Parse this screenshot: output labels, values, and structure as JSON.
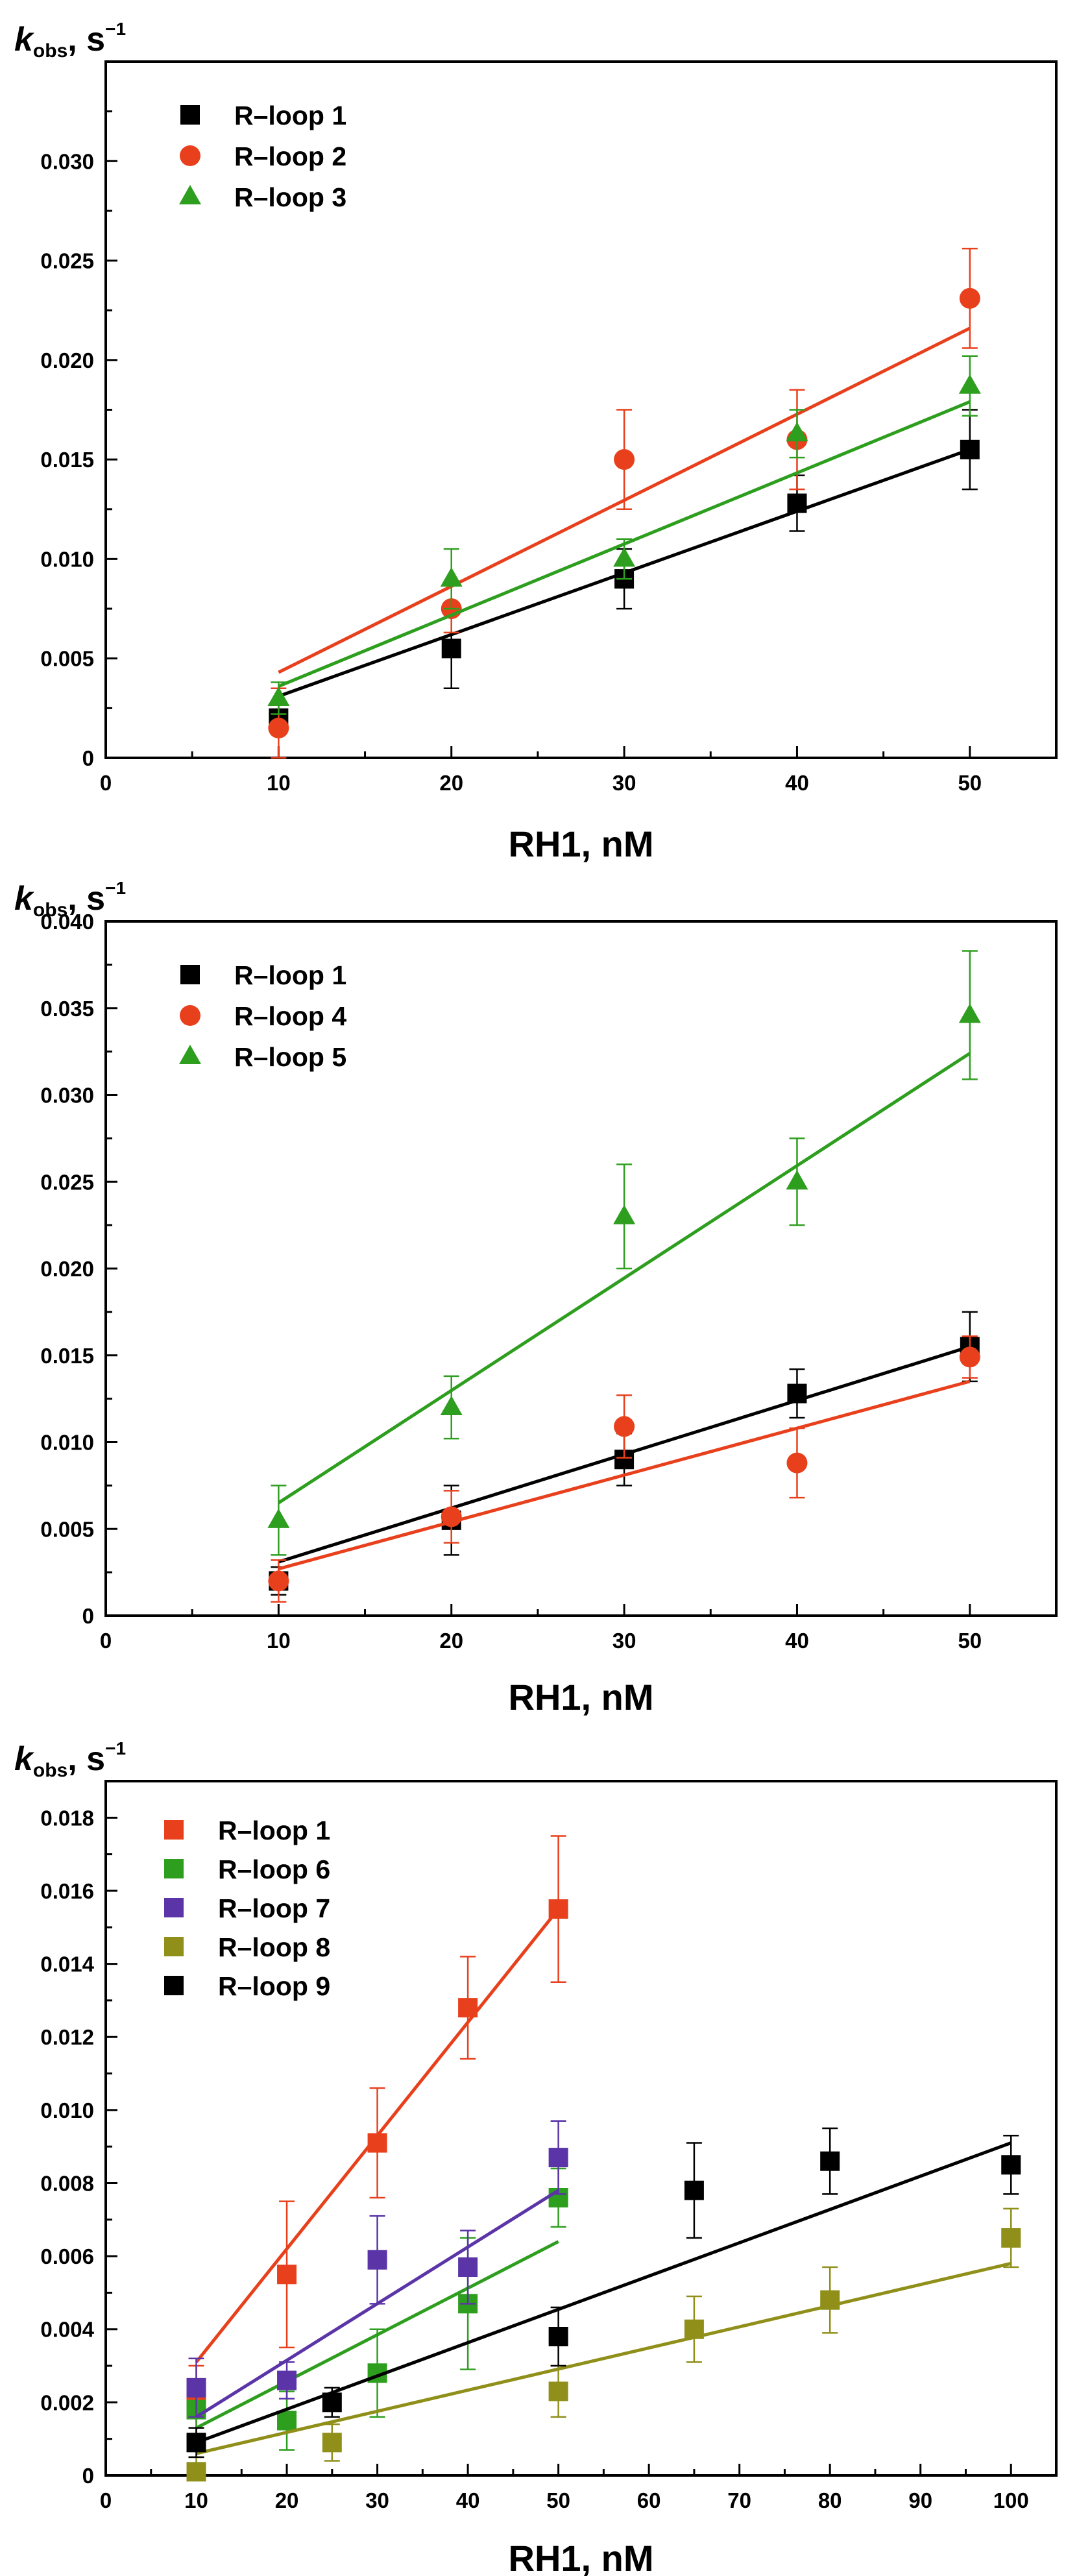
{
  "chart_data": [
    {
      "type": "scatter",
      "panel": "top",
      "ylabel": {
        "main": "k",
        "sub": "obs",
        "unit": ", s",
        "sup": "−1"
      },
      "xlabel": "RH1, nM",
      "xlim": [
        0,
        55
      ],
      "ylim": [
        0,
        0.035
      ],
      "xticks": [
        0,
        10,
        20,
        30,
        40,
        50
      ],
      "yticks": [
        0,
        0.005,
        0.01,
        0.015,
        0.02,
        0.025,
        0.03
      ],
      "ytick_labels": [
        "0",
        "0.005",
        "0.010",
        "0.015",
        "0.020",
        "0.025",
        "0.030"
      ],
      "legend": "top-left",
      "series": [
        {
          "name": "R–loop 1",
          "color": "#000000",
          "marker": "square",
          "x": [
            10,
            20,
            30,
            40,
            50
          ],
          "values": [
            0.002,
            0.0055,
            0.009,
            0.0128,
            0.0155
          ],
          "errors": [
            0.0008,
            0.002,
            0.0015,
            0.0014,
            0.002
          ],
          "fit": [
            0.0031,
            0.0155
          ]
        },
        {
          "name": "R–loop 2",
          "color": "#E8401C",
          "marker": "circle",
          "x": [
            10,
            20,
            30,
            40,
            50
          ],
          "values": [
            0.0015,
            0.0075,
            0.015,
            0.016,
            0.0231
          ],
          "errors": [
            0.002,
            0.0012,
            0.0025,
            0.0025,
            0.0025
          ],
          "fit": [
            0.0043,
            0.0216
          ]
        },
        {
          "name": "R–loop 3",
          "color": "#2E9E1F",
          "marker": "triangle",
          "x": [
            10,
            20,
            30,
            40,
            50
          ],
          "values": [
            0.003,
            0.009,
            0.01,
            0.0163,
            0.0187
          ],
          "errors": [
            0.0008,
            0.0015,
            0.001,
            0.0012,
            0.0015
          ],
          "fit": [
            0.0036,
            0.0179
          ]
        }
      ]
    },
    {
      "type": "scatter",
      "panel": "middle",
      "ylabel": {
        "main": "k",
        "sub": "obs",
        "unit": ", s",
        "sup": "−1"
      },
      "xlabel": "RH1, nM",
      "xlim": [
        0,
        55
      ],
      "ylim": [
        0,
        0.04
      ],
      "xticks": [
        0,
        10,
        20,
        30,
        40,
        50
      ],
      "yticks": [
        0,
        0.005,
        0.01,
        0.015,
        0.02,
        0.025,
        0.03,
        0.035,
        0.04
      ],
      "ytick_labels": [
        "0",
        "0.005",
        "0.010",
        "0.015",
        "0.020",
        "0.025",
        "0.030",
        "0.035",
        "0.040"
      ],
      "legend": "top-left",
      "series": [
        {
          "name": "R–loop 1",
          "color": "#000000",
          "marker": "square",
          "x": [
            10,
            20,
            30,
            40,
            50
          ],
          "values": [
            0.002,
            0.0055,
            0.009,
            0.0128,
            0.0155
          ],
          "errors": [
            0.0008,
            0.002,
            0.0015,
            0.0014,
            0.002
          ],
          "fit": [
            0.0031,
            0.0155
          ]
        },
        {
          "name": "R–loop 4",
          "color": "#E8401C",
          "marker": "circle",
          "x": [
            10,
            20,
            30,
            40,
            50
          ],
          "values": [
            0.002,
            0.0057,
            0.0109,
            0.0088,
            0.0149
          ],
          "errors": [
            0.0012,
            0.0015,
            0.0018,
            0.002,
            0.0012
          ],
          "fit": [
            0.0027,
            0.0135
          ]
        },
        {
          "name": "R–loop 5",
          "color": "#2E9E1F",
          "marker": "triangle",
          "x": [
            10,
            20,
            30,
            40,
            50
          ],
          "values": [
            0.0055,
            0.012,
            0.023,
            0.025,
            0.0346
          ],
          "errors": [
            0.002,
            0.0018,
            0.003,
            0.0025,
            0.0037
          ],
          "fit": [
            0.0065,
            0.0324
          ]
        }
      ]
    },
    {
      "type": "scatter",
      "panel": "bottom",
      "ylabel": {
        "main": "k",
        "sub": "obs",
        "unit": ", s",
        "sup": "−1"
      },
      "xlabel": "RH1, nM",
      "xlim": [
        0,
        105
      ],
      "ylim": [
        0,
        0.019
      ],
      "xticks": [
        0,
        10,
        20,
        30,
        40,
        50,
        60,
        70,
        80,
        90,
        100
      ],
      "yticks": [
        0,
        0.002,
        0.004,
        0.006,
        0.008,
        0.01,
        0.012,
        0.014,
        0.016,
        0.018
      ],
      "ytick_labels": [
        "0",
        "0.002",
        "0.004",
        "0.006",
        "0.008",
        "0.010",
        "0.012",
        "0.014",
        "0.016",
        "0.018"
      ],
      "legend": "top-left",
      "series": [
        {
          "name": "R–loop 1",
          "color": "#E8401C",
          "marker": "square",
          "x": [
            10,
            20,
            30,
            40,
            50
          ],
          "values": [
            0.002,
            0.0055,
            0.0091,
            0.0128,
            0.0155
          ],
          "errors": [
            0.001,
            0.002,
            0.0015,
            0.0014,
            0.002
          ],
          "fit": [
            [
              10,
              0.0031
            ],
            [
              50,
              0.0155
            ]
          ]
        },
        {
          "name": "R–loop 6",
          "color": "#2E9E1F",
          "marker": "square",
          "x": [
            10,
            20,
            30,
            40,
            50
          ],
          "values": [
            0.0018,
            0.0015,
            0.0028,
            0.0047,
            0.0076
          ],
          "errors": [
            0.0008,
            0.0008,
            0.0012,
            0.0018,
            0.0008
          ],
          "fit": [
            [
              10,
              0.0013
            ],
            [
              50,
              0.0064
            ]
          ]
        },
        {
          "name": "R–loop 7",
          "color": "#5B35A8",
          "marker": "square",
          "x": [
            10,
            20,
            30,
            40,
            50
          ],
          "values": [
            0.0024,
            0.0026,
            0.0059,
            0.0057,
            0.0087
          ],
          "errors": [
            0.0008,
            0.0005,
            0.0012,
            0.001,
            0.001
          ],
          "fit": [
            [
              10,
              0.0016
            ],
            [
              50,
              0.0078
            ]
          ]
        },
        {
          "name": "R–loop 8",
          "color": "#8F8F1A",
          "marker": "square",
          "x": [
            10,
            25,
            50,
            65,
            80,
            100
          ],
          "values": [
            0.0001,
            0.0009,
            0.0023,
            0.004,
            0.0048,
            0.0065
          ],
          "errors": [
            0.0004,
            0.0005,
            0.0007,
            0.0009,
            0.0009,
            0.0008
          ],
          "fit": [
            [
              10,
              0.0006
            ],
            [
              100,
              0.0058
            ]
          ]
        },
        {
          "name": "R–loop 9",
          "color": "#000000",
          "marker": "square",
          "x": [
            10,
            25,
            50,
            65,
            80,
            100
          ],
          "values": [
            0.0009,
            0.002,
            0.0038,
            0.0078,
            0.0086,
            0.0085
          ],
          "errors": [
            0.0004,
            0.0004,
            0.0008,
            0.0013,
            0.0009,
            0.0008
          ],
          "fit": [
            [
              10,
              0.0009
            ],
            [
              100,
              0.0091
            ]
          ]
        }
      ]
    }
  ]
}
